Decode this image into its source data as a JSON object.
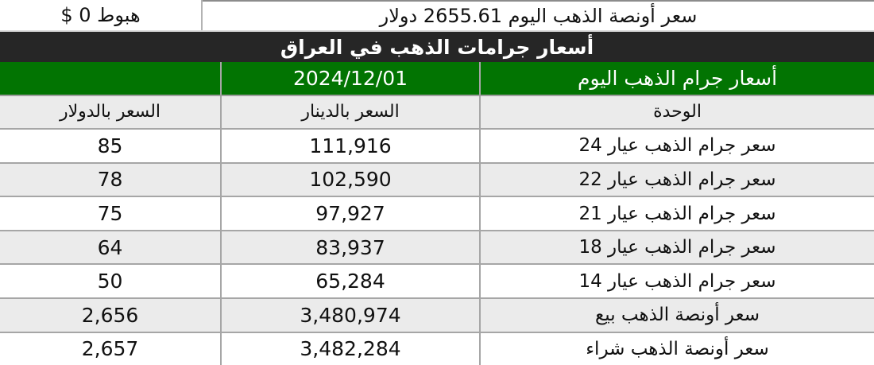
{
  "top_bar": {
    "change": "هبوط 0 $",
    "ounce_price": "سعر أونصة الذهب اليوم 2655.61 دولار"
  },
  "banner": {
    "title": "أسعار جرامات الذهب في العراق"
  },
  "table": {
    "date": "2024/12/01",
    "header_title": "أسعار جرام الذهب اليوم",
    "columns": {
      "dollar": "السعر بالدولار",
      "dinar": "السعر بالدينار",
      "unit": "الوحدة"
    },
    "rows": [
      {
        "unit": "سعر جرام الذهب عيار 24",
        "dinar": "111,916",
        "dollar": "85"
      },
      {
        "unit": "سعر جرام الذهب عيار 22",
        "dinar": "102,590",
        "dollar": "78"
      },
      {
        "unit": "سعر جرام الذهب عيار 21",
        "dinar": "97,927",
        "dollar": "75"
      },
      {
        "unit": "سعر جرام الذهب عيار 18",
        "dinar": "83,937",
        "dollar": "64"
      },
      {
        "unit": "سعر جرام الذهب عيار 14",
        "dinar": "65,284",
        "dollar": "50"
      },
      {
        "unit": "سعر أونصة الذهب بيع",
        "dinar": "3,480,974",
        "dollar": "2,656"
      },
      {
        "unit": "سعر أونصة الذهب شراء",
        "dinar": "3,482,284",
        "dollar": "2,657"
      }
    ]
  },
  "colors": {
    "green_header": "#027402",
    "banner_background": "#262626",
    "alt_row": "#ebebeb",
    "grid_border": "#a6a6a6"
  }
}
